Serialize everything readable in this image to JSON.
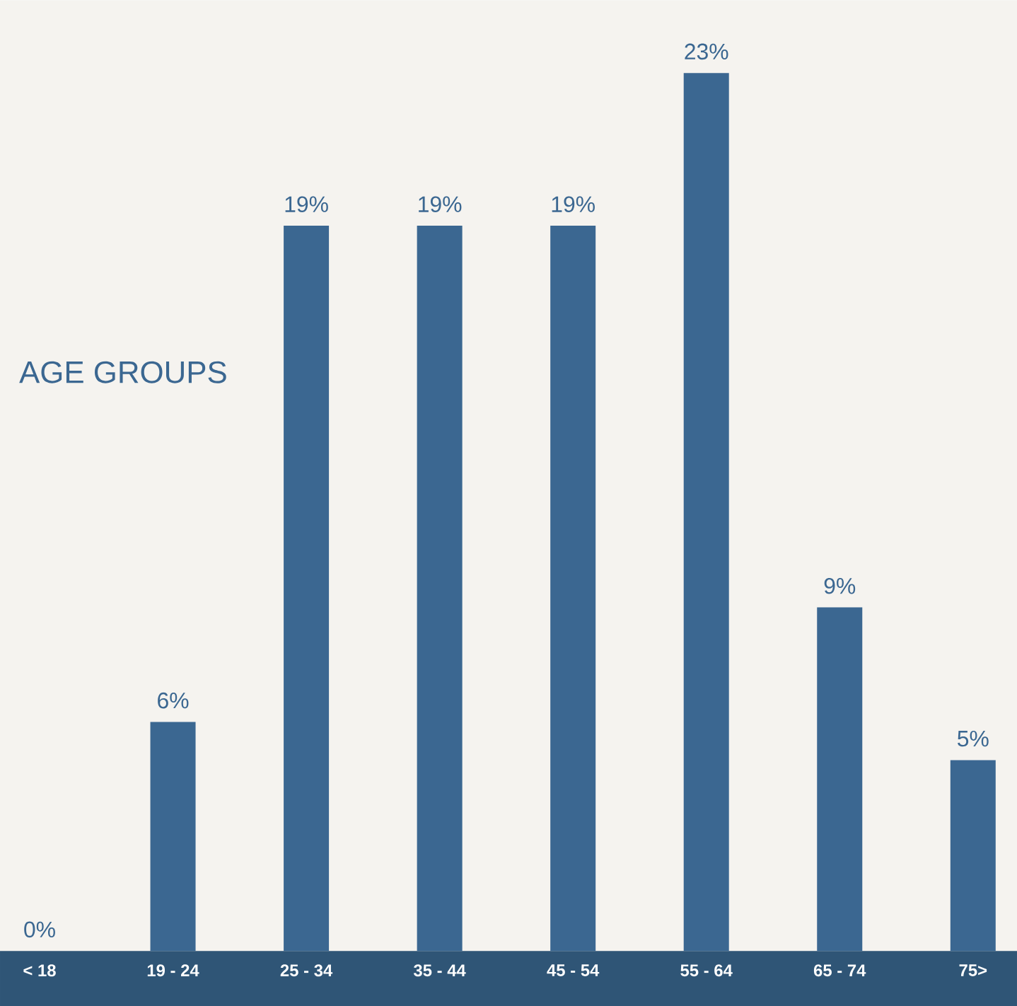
{
  "chart_data": {
    "type": "bar",
    "title": "AGE GROUPS",
    "categories": [
      "< 18",
      "19 - 24",
      "25 - 34",
      "35 - 44",
      "45 - 54",
      "55 - 64",
      "65 - 74",
      "75>"
    ],
    "values": [
      0,
      6,
      19,
      19,
      19,
      23,
      9,
      5
    ],
    "value_labels": [
      "0%",
      "6%",
      "19%",
      "19%",
      "19%",
      "23%",
      "9%",
      "5%"
    ],
    "color": "#3b6791"
  }
}
